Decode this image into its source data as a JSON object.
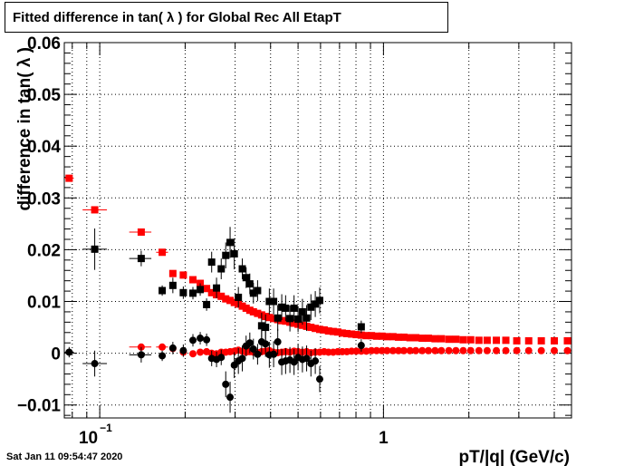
{
  "timestamp": "Sat Jan 11 09:54:47 2020",
  "chart_data": {
    "type": "scatter",
    "title": "Fitted difference in tan( λ ) for Global Rec All EtapT",
    "xlabel": "pT/|q| (GeV/c)",
    "ylabel": "difference in tan( λ )",
    "x_scale": "log",
    "xlim": [
      0.075,
      4.6
    ],
    "ylim": [
      -0.0125,
      0.06
    ],
    "grid": true,
    "y_ticks": [
      -0.01,
      0,
      0.01,
      0.02,
      0.03,
      0.04,
      0.05,
      0.06
    ],
    "y_tick_labels": [
      "−0.01",
      "0",
      "0.01",
      "0.02",
      "0.03",
      "0.04",
      "0.05",
      "0.06"
    ],
    "x_tick_labels": [
      {
        "value": 0.1,
        "label": "10",
        "exponent": "−1"
      },
      {
        "value": 1,
        "label": "1",
        "exponent": ""
      }
    ],
    "colors": {
      "black": "#000000",
      "red": "#ff0000",
      "grid": "#000000"
    },
    "series": [
      {
        "color": "#ff0000",
        "marker": "square",
        "points": [
          {
            "x": 0.078,
            "y": 0.0338,
            "xlo": 0.075,
            "xhi": 0.081
          },
          {
            "x": 0.096,
            "y": 0.0277,
            "xlo": 0.087,
            "xhi": 0.106
          },
          {
            "x": 0.14,
            "y": 0.0234,
            "xlo": 0.127,
            "xhi": 0.152
          },
          {
            "x": 0.166,
            "y": 0.0195,
            "xlo": 0.158,
            "xhi": 0.174
          },
          {
            "x": 0.181,
            "y": 0.0154
          },
          {
            "x": 0.197,
            "y": 0.0151
          },
          {
            "x": 0.213,
            "y": 0.0142
          },
          {
            "x": 0.226,
            "y": 0.0135
          },
          {
            "x": 0.238,
            "y": 0.0125
          },
          {
            "x": 0.248,
            "y": 0.0117
          },
          {
            "x": 0.258,
            "y": 0.0113
          },
          {
            "x": 0.268,
            "y": 0.011
          },
          {
            "x": 0.278,
            "y": 0.0105
          },
          {
            "x": 0.288,
            "y": 0.0102
          },
          {
            "x": 0.298,
            "y": 0.0098
          },
          {
            "x": 0.308,
            "y": 0.0095
          },
          {
            "x": 0.318,
            "y": 0.0091
          },
          {
            "x": 0.328,
            "y": 0.0087
          },
          {
            "x": 0.338,
            "y": 0.0083
          },
          {
            "x": 0.348,
            "y": 0.008
          },
          {
            "x": 0.36,
            "y": 0.0077
          },
          {
            "x": 0.372,
            "y": 0.0074
          },
          {
            "x": 0.384,
            "y": 0.0071
          },
          {
            "x": 0.396,
            "y": 0.0069
          },
          {
            "x": 0.41,
            "y": 0.0067
          },
          {
            "x": 0.424,
            "y": 0.0065
          },
          {
            "x": 0.438,
            "y": 0.0063
          },
          {
            "x": 0.452,
            "y": 0.0062
          },
          {
            "x": 0.468,
            "y": 0.006
          },
          {
            "x": 0.484,
            "y": 0.0058
          },
          {
            "x": 0.5,
            "y": 0.0056
          },
          {
            "x": 0.518,
            "y": 0.0054
          },
          {
            "x": 0.536,
            "y": 0.0052
          },
          {
            "x": 0.555,
            "y": 0.005
          },
          {
            "x": 0.575,
            "y": 0.0048
          },
          {
            "x": 0.596,
            "y": 0.0046
          },
          {
            "x": 0.618,
            "y": 0.0045
          },
          {
            "x": 0.64,
            "y": 0.0043
          },
          {
            "x": 0.665,
            "y": 0.0042
          },
          {
            "x": 0.69,
            "y": 0.0041
          },
          {
            "x": 0.716,
            "y": 0.0039
          },
          {
            "x": 0.743,
            "y": 0.0038
          },
          {
            "x": 0.772,
            "y": 0.0037
          },
          {
            "x": 0.802,
            "y": 0.0036
          },
          {
            "x": 0.835,
            "y": 0.0035
          },
          {
            "x": 0.87,
            "y": 0.0034
          },
          {
            "x": 0.907,
            "y": 0.0034
          },
          {
            "x": 0.946,
            "y": 0.0033
          },
          {
            "x": 0.988,
            "y": 0.0033
          },
          {
            "x": 1.03,
            "y": 0.0032
          },
          {
            "x": 1.08,
            "y": 0.0032
          },
          {
            "x": 1.13,
            "y": 0.0031
          },
          {
            "x": 1.18,
            "y": 0.0031
          },
          {
            "x": 1.24,
            "y": 0.003
          },
          {
            "x": 1.3,
            "y": 0.003
          },
          {
            "x": 1.37,
            "y": 0.0029
          },
          {
            "x": 1.44,
            "y": 0.0029
          },
          {
            "x": 1.52,
            "y": 0.0028
          },
          {
            "x": 1.6,
            "y": 0.0028
          },
          {
            "x": 1.7,
            "y": 0.0027
          },
          {
            "x": 1.8,
            "y": 0.0027
          },
          {
            "x": 1.91,
            "y": 0.0026
          },
          {
            "x": 2.03,
            "y": 0.0026
          },
          {
            "x": 2.17,
            "y": 0.0025
          },
          {
            "x": 2.32,
            "y": 0.0025
          },
          {
            "x": 2.5,
            "y": 0.0025
          },
          {
            "x": 2.7,
            "y": 0.0025
          },
          {
            "x": 2.95,
            "y": 0.0024
          },
          {
            "x": 3.25,
            "y": 0.0024
          },
          {
            "x": 3.6,
            "y": 0.0024
          },
          {
            "x": 4.0,
            "y": 0.0024
          },
          {
            "x": 4.45,
            "y": 0.0024
          }
        ]
      },
      {
        "color": "#ff0000",
        "marker": "circle",
        "points": [
          {
            "x": 0.14,
            "y": 0.0012,
            "xlo": 0.127,
            "xhi": 0.152
          },
          {
            "x": 0.166,
            "y": 0.0012,
            "xlo": 0.158,
            "xhi": 0.174
          },
          {
            "x": 0.181,
            "y": 0.0009
          },
          {
            "x": 0.197,
            "y": 0.0002
          },
          {
            "x": 0.213,
            "y": -0.0001
          },
          {
            "x": 0.226,
            "y": 0.0002
          },
          {
            "x": 0.238,
            "y": 0.0003
          },
          {
            "x": 0.248,
            "y": 0.0
          },
          {
            "x": 0.258,
            "y": -0.0001
          },
          {
            "x": 0.268,
            "y": 0.0002
          },
          {
            "x": 0.278,
            "y": 0.0002
          },
          {
            "x": 0.288,
            "y": 0.0003
          },
          {
            "x": 0.298,
            "y": 0.0004
          },
          {
            "x": 0.308,
            "y": 0.0006
          },
          {
            "x": 0.318,
            "y": 0.0004
          },
          {
            "x": 0.328,
            "y": 0.0002
          },
          {
            "x": 0.338,
            "y": 0.0003
          },
          {
            "x": 0.348,
            "y": 0.0002
          },
          {
            "x": 0.36,
            "y": 0.0001
          },
          {
            "x": 0.372,
            "y": 0.0003
          },
          {
            "x": 0.384,
            "y": 0.0004
          },
          {
            "x": 0.396,
            "y": 0.0005
          },
          {
            "x": 0.41,
            "y": 0.0002
          },
          {
            "x": 0.424,
            "y": 0.0001
          },
          {
            "x": 0.438,
            "y": 0.0002
          },
          {
            "x": 0.452,
            "y": 0.0003
          },
          {
            "x": 0.468,
            "y": 0.0002
          },
          {
            "x": 0.484,
            "y": 0.0004
          },
          {
            "x": 0.5,
            "y": 0.0003
          },
          {
            "x": 0.518,
            "y": 0.0002
          },
          {
            "x": 0.536,
            "y": 0.0003
          },
          {
            "x": 0.555,
            "y": 0.0001
          },
          {
            "x": 0.575,
            "y": 0.0002
          },
          {
            "x": 0.596,
            "y": 0.0002
          },
          {
            "x": 0.618,
            "y": 0.0003
          },
          {
            "x": 0.64,
            "y": 0.0002
          },
          {
            "x": 0.665,
            "y": 0.0002
          },
          {
            "x": 0.69,
            "y": 0.0003
          },
          {
            "x": 0.716,
            "y": 0.0003
          },
          {
            "x": 0.743,
            "y": 0.0003
          },
          {
            "x": 0.772,
            "y": 0.0004
          },
          {
            "x": 0.802,
            "y": 0.0004
          },
          {
            "x": 0.835,
            "y": 0.0004
          },
          {
            "x": 0.87,
            "y": 0.0004
          },
          {
            "x": 0.907,
            "y": 0.0005
          },
          {
            "x": 0.946,
            "y": 0.0005
          },
          {
            "x": 0.988,
            "y": 0.0005
          },
          {
            "x": 1.03,
            "y": 0.0005
          },
          {
            "x": 1.08,
            "y": 0.0005
          },
          {
            "x": 1.13,
            "y": 0.0005
          },
          {
            "x": 1.18,
            "y": 0.0005
          },
          {
            "x": 1.24,
            "y": 0.0005
          },
          {
            "x": 1.3,
            "y": 0.0005
          },
          {
            "x": 1.37,
            "y": 0.0005
          },
          {
            "x": 1.44,
            "y": 0.0005
          },
          {
            "x": 1.52,
            "y": 0.0005
          },
          {
            "x": 1.6,
            "y": 0.0005
          },
          {
            "x": 1.7,
            "y": 0.0005
          },
          {
            "x": 1.8,
            "y": 0.0005
          },
          {
            "x": 1.91,
            "y": 0.0005
          },
          {
            "x": 2.03,
            "y": 0.0005
          },
          {
            "x": 2.17,
            "y": 0.0005
          },
          {
            "x": 2.32,
            "y": 0.0005
          },
          {
            "x": 2.5,
            "y": 0.0005
          },
          {
            "x": 2.7,
            "y": 0.0005
          },
          {
            "x": 2.95,
            "y": 0.0005
          },
          {
            "x": 3.25,
            "y": 0.0005
          },
          {
            "x": 3.6,
            "y": 0.0005
          },
          {
            "x": 4.0,
            "y": 0.0005
          },
          {
            "x": 4.45,
            "y": 0.0005
          }
        ]
      },
      {
        "color": "#000000",
        "marker": "square",
        "points": [
          {
            "x": 0.096,
            "y": 0.0201,
            "err": 0.004,
            "xlo": 0.087,
            "xhi": 0.106
          },
          {
            "x": 0.14,
            "y": 0.0183,
            "err": 0.0015,
            "xlo": 0.127,
            "xhi": 0.152
          },
          {
            "x": 0.166,
            "y": 0.0121,
            "err": 0.001
          },
          {
            "x": 0.181,
            "y": 0.0131,
            "err": 0.0015
          },
          {
            "x": 0.197,
            "y": 0.0117,
            "err": 0.0012
          },
          {
            "x": 0.213,
            "y": 0.0116,
            "err": 0.0012
          },
          {
            "x": 0.226,
            "y": 0.0123,
            "err": 0.0012
          },
          {
            "x": 0.238,
            "y": 0.0094,
            "err": 0.0012
          },
          {
            "x": 0.248,
            "y": 0.0176,
            "err": 0.002
          },
          {
            "x": 0.258,
            "y": 0.0126,
            "err": 0.002
          },
          {
            "x": 0.268,
            "y": 0.0163,
            "err": 0.002
          },
          {
            "x": 0.278,
            "y": 0.0189,
            "err": 0.0025
          },
          {
            "x": 0.288,
            "y": 0.0214,
            "err": 0.003
          },
          {
            "x": 0.298,
            "y": 0.0192,
            "err": 0.003
          },
          {
            "x": 0.308,
            "y": 0.0108,
            "err": 0.002
          },
          {
            "x": 0.318,
            "y": 0.0163,
            "err": 0.002
          },
          {
            "x": 0.328,
            "y": 0.0146,
            "err": 0.002
          },
          {
            "x": 0.338,
            "y": 0.0134,
            "err": 0.002
          },
          {
            "x": 0.348,
            "y": 0.0116,
            "err": 0.002
          },
          {
            "x": 0.36,
            "y": 0.0121,
            "err": 0.002
          },
          {
            "x": 0.372,
            "y": 0.0053,
            "err": 0.0025
          },
          {
            "x": 0.384,
            "y": 0.005,
            "err": 0.0025
          },
          {
            "x": 0.396,
            "y": 0.01,
            "err": 0.0025
          },
          {
            "x": 0.41,
            "y": 0.01,
            "err": 0.0025
          },
          {
            "x": 0.424,
            "y": 0.0068,
            "err": 0.0025
          },
          {
            "x": 0.438,
            "y": 0.0089,
            "err": 0.0025
          },
          {
            "x": 0.452,
            "y": 0.0087,
            "err": 0.0025
          },
          {
            "x": 0.468,
            "y": 0.0067,
            "err": 0.0025
          },
          {
            "x": 0.484,
            "y": 0.0087,
            "err": 0.0025
          },
          {
            "x": 0.5,
            "y": 0.0066,
            "err": 0.0025
          },
          {
            "x": 0.518,
            "y": 0.008,
            "err": 0.0025
          },
          {
            "x": 0.536,
            "y": 0.0068,
            "err": 0.0025
          },
          {
            "x": 0.555,
            "y": 0.0089,
            "err": 0.0025
          },
          {
            "x": 0.575,
            "y": 0.0095,
            "err": 0.0025
          },
          {
            "x": 0.596,
            "y": 0.0102,
            "err": 0.0025
          },
          {
            "x": 0.835,
            "y": 0.0051,
            "err": 0.0012
          }
        ]
      },
      {
        "color": "#000000",
        "marker": "circle",
        "points": [
          {
            "x": 0.078,
            "y": 0.0002,
            "err": 0.001,
            "xlo": 0.075,
            "xhi": 0.081
          },
          {
            "x": 0.096,
            "y": -0.002,
            "err": 0.0025,
            "xlo": 0.087,
            "xhi": 0.106
          },
          {
            "x": 0.14,
            "y": -0.0003,
            "err": 0.0015,
            "xlo": 0.127,
            "xhi": 0.152
          },
          {
            "x": 0.166,
            "y": -0.0005,
            "err": 0.001
          },
          {
            "x": 0.181,
            "y": 0.001,
            "err": 0.0012
          },
          {
            "x": 0.197,
            "y": 0.0005,
            "err": 0.0012
          },
          {
            "x": 0.213,
            "y": 0.0025,
            "err": 0.0012
          },
          {
            "x": 0.226,
            "y": 0.0029,
            "err": 0.0012
          },
          {
            "x": 0.238,
            "y": 0.0026,
            "err": 0.0012
          },
          {
            "x": 0.248,
            "y": -0.001,
            "err": 0.0015
          },
          {
            "x": 0.258,
            "y": -0.0012,
            "err": 0.0015
          },
          {
            "x": 0.268,
            "y": -0.0008,
            "err": 0.0015
          },
          {
            "x": 0.278,
            "y": -0.006,
            "err": 0.0025
          },
          {
            "x": 0.288,
            "y": -0.0085,
            "err": 0.003
          },
          {
            "x": 0.298,
            "y": -0.0023,
            "err": 0.0025
          },
          {
            "x": 0.308,
            "y": -0.0015,
            "err": 0.0025
          },
          {
            "x": 0.318,
            "y": -0.001,
            "err": 0.0025
          },
          {
            "x": 0.328,
            "y": 0.0014,
            "err": 0.002
          },
          {
            "x": 0.338,
            "y": 0.002,
            "err": 0.002
          },
          {
            "x": 0.348,
            "y": 0.0008,
            "err": 0.002
          },
          {
            "x": 0.36,
            "y": -0.0002,
            "err": 0.002
          },
          {
            "x": 0.372,
            "y": 0.0022,
            "err": 0.0025
          },
          {
            "x": 0.384,
            "y": 0.0018,
            "err": 0.0025
          },
          {
            "x": 0.396,
            "y": -0.0003,
            "err": 0.0025
          },
          {
            "x": 0.41,
            "y": -0.0002,
            "err": 0.0025
          },
          {
            "x": 0.424,
            "y": 0.0022,
            "err": 0.0025
          },
          {
            "x": 0.438,
            "y": -0.0017,
            "err": 0.0025
          },
          {
            "x": 0.452,
            "y": -0.0015,
            "err": 0.0025
          },
          {
            "x": 0.468,
            "y": -0.0013,
            "err": 0.0025
          },
          {
            "x": 0.484,
            "y": -0.0017,
            "err": 0.0025
          },
          {
            "x": 0.5,
            "y": -0.0008,
            "err": 0.0025
          },
          {
            "x": 0.518,
            "y": -0.0012,
            "err": 0.0025
          },
          {
            "x": 0.536,
            "y": -0.001,
            "err": 0.0025
          },
          {
            "x": 0.555,
            "y": -0.002,
            "err": 0.0025
          },
          {
            "x": 0.575,
            "y": -0.0015,
            "err": 0.0025
          },
          {
            "x": 0.596,
            "y": -0.005,
            "err": 0.0025
          },
          {
            "x": 0.835,
            "y": 0.0015,
            "err": 0.0012
          }
        ]
      }
    ]
  }
}
